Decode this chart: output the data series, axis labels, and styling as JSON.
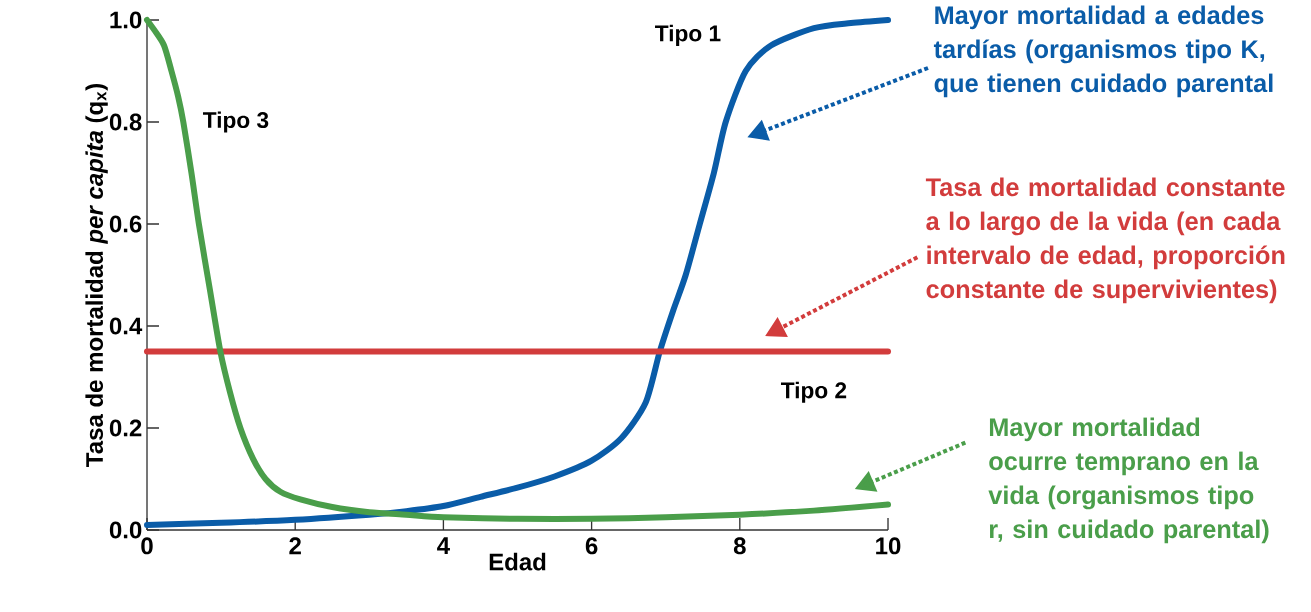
{
  "chart_data": {
    "type": "line",
    "xlabel": "Edad",
    "ylabel": "Tasa de mortalidad *per capita* (q$_{x}$)",
    "xlim": [
      0,
      10
    ],
    "ylim": [
      0,
      1.0
    ],
    "xticks": [
      0,
      2,
      4,
      6,
      8,
      10
    ],
    "yticks": [
      {
        "value": 0,
        "label": "0.0"
      },
      0.2,
      0.4,
      0.6,
      0.8,
      {
        "value": 1.0,
        "label": "1.0"
      }
    ],
    "series": [
      {
        "name": "Tipo 1",
        "color": "#0a5ca8",
        "x": [
          0,
          1,
          2,
          3,
          3.5,
          4,
          4.5,
          5,
          5.5,
          6,
          6.4,
          6.73,
          6.92,
          7.1,
          7.27,
          7.46,
          7.65,
          7.81,
          8.08,
          8.42,
          9,
          9.5,
          10
        ],
        "values": [
          0.01,
          0.014,
          0.02,
          0.03,
          0.037,
          0.047,
          0.065,
          0.083,
          0.105,
          0.136,
          0.18,
          0.25,
          0.35,
          0.43,
          0.5,
          0.6,
          0.7,
          0.8,
          0.9,
          0.95,
          0.984,
          0.994,
          1.0
        ]
      },
      {
        "name": "Tipo 2",
        "color": "#d23c3c",
        "x": [
          0,
          10
        ],
        "values": [
          0.35,
          0.35
        ]
      },
      {
        "name": "Tipo 3",
        "color": "#4a9e4a",
        "x": [
          0,
          0.1,
          0.23,
          0.33,
          0.42,
          0.49,
          0.6,
          0.7,
          0.85,
          0.99,
          1.12,
          1.26,
          1.43,
          1.6,
          1.8,
          2.07,
          2.5,
          3,
          3.5,
          4,
          5,
          6,
          7,
          8,
          9,
          10
        ],
        "values": [
          1.0,
          0.98,
          0.95,
          0.9,
          0.85,
          0.8,
          0.7,
          0.6,
          0.47,
          0.35,
          0.27,
          0.2,
          0.14,
          0.1,
          0.075,
          0.06,
          0.045,
          0.035,
          0.03,
          0.025,
          0.022,
          0.022,
          0.025,
          0.03,
          0.038,
          0.05
        ]
      }
    ],
    "annotations": [
      "Mayor mortalidad a edades tardías (organismos tipo K, que tienen cuidado parental",
      "Tasa de mortalidad constante a lo largo de la vida (en cada intervalo de edad, proporción constante de supervivientes)",
      "Mayor mortalidad ocurre temprano en la vida (organismos tipo r, sin cuidado parental)"
    ]
  }
}
